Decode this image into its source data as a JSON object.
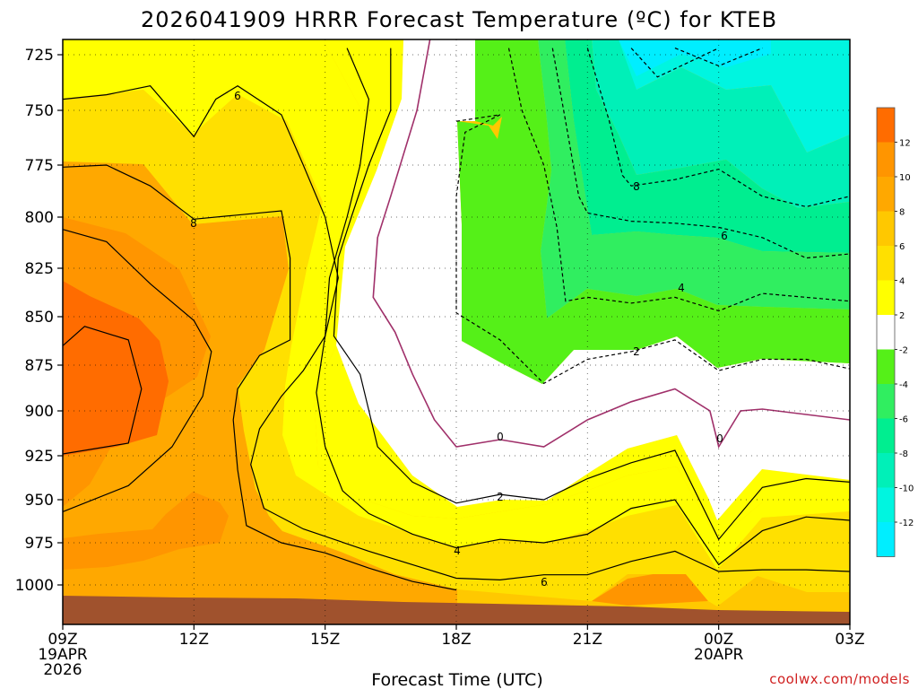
{
  "chart_data": {
    "type": "contour",
    "title": "2026041909 HRRR Forecast Temperature (ºC) for KTEB",
    "xlabel": "Forecast Time (UTC)",
    "ylabel": "",
    "credit": "coolwx.com/models",
    "y_axis": {
      "scale": "pressure (hPa), inverted",
      "ylim": [
        1015,
        718
      ],
      "ticks": [
        "725",
        "750",
        "775",
        "800",
        "825",
        "850",
        "875",
        "900",
        "925",
        "950",
        "975",
        "1000"
      ]
    },
    "x_axis": {
      "xlim_hours": [
        9,
        27
      ],
      "ticks": [
        {
          "label": "09Z",
          "line2": "19APR",
          "line3": "2026",
          "hour": 9
        },
        {
          "label": "12Z",
          "line2": "",
          "line3": "",
          "hour": 12
        },
        {
          "label": "15Z",
          "line2": "",
          "line3": "",
          "hour": 15
        },
        {
          "label": "18Z",
          "line2": "",
          "line3": "",
          "hour": 18
        },
        {
          "label": "21Z",
          "line2": "",
          "line3": "",
          "hour": 21
        },
        {
          "label": "00Z",
          "line2": "20APR",
          "line3": "",
          "hour": 24
        },
        {
          "label": "03Z",
          "line2": "",
          "line3": "",
          "hour": 27
        }
      ]
    },
    "colorbar": {
      "bands": [
        {
          "lo": -14,
          "hi": -12,
          "color": "#00eeff"
        },
        {
          "lo": -12,
          "hi": -10,
          "color": "#00f5e0"
        },
        {
          "lo": -10,
          "hi": -8,
          "color": "#00f0b8"
        },
        {
          "lo": -8,
          "hi": -6,
          "color": "#00ee90"
        },
        {
          "lo": -6,
          "hi": -4,
          "color": "#30ee60"
        },
        {
          "lo": -4,
          "hi": -2,
          "color": "#55f018"
        },
        {
          "lo": -2,
          "hi": 2,
          "color": "#ffffff"
        },
        {
          "lo": 2,
          "hi": 4,
          "color": "#ffff00"
        },
        {
          "lo": 4,
          "hi": 6,
          "color": "#ffe000"
        },
        {
          "lo": 6,
          "hi": 8,
          "color": "#ffc800"
        },
        {
          "lo": 8,
          "hi": 10,
          "color": "#ffa800"
        },
        {
          "lo": 10,
          "hi": 12,
          "color": "#ff9500"
        },
        {
          "lo": 12,
          "hi": 14,
          "color": "#ff6c00"
        }
      ],
      "tick_labels": [
        "12",
        "10",
        "8",
        "6",
        "4",
        "2",
        "-2",
        "-4",
        "-6",
        "-8",
        "-10",
        "-12"
      ]
    },
    "contour_labels": [
      "6",
      "8",
      "8",
      "6",
      "4",
      "2",
      "0",
      "0",
      "2",
      "4",
      "6"
    ],
    "series": [
      {
        "level": 12,
        "pressure_hPa_by_hour": [
          [
            9,
            865
          ],
          [
            9.5,
            855
          ],
          [
            10.5,
            862
          ],
          [
            10.8,
            888
          ],
          [
            10.5,
            918
          ],
          [
            9.5,
            922
          ],
          [
            9,
            924
          ]
        ]
      },
      {
        "level": 10,
        "pressure_hPa_by_hour": [
          [
            9,
            806
          ],
          [
            10,
            812
          ],
          [
            11,
            833
          ],
          [
            12,
            852
          ],
          [
            12.4,
            868
          ],
          [
            12.2,
            892
          ],
          [
            11.5,
            920
          ],
          [
            10.5,
            942
          ],
          [
            9,
            957
          ]
        ]
      },
      {
        "level": 8,
        "pressure_hPa_by_hour": [
          [
            9,
            776
          ],
          [
            10,
            775
          ],
          [
            11,
            785
          ],
          [
            12,
            801
          ],
          [
            13,
            799
          ],
          [
            14,
            797
          ],
          [
            14.2,
            820
          ],
          [
            14.2,
            862
          ],
          [
            13.5,
            870
          ],
          [
            13,
            888
          ],
          [
            12.9,
            905
          ],
          [
            13,
            933
          ],
          [
            13.2,
            965
          ],
          [
            14,
            975
          ],
          [
            15,
            981
          ],
          [
            16,
            990
          ],
          [
            17,
            998
          ],
          [
            18,
            1003
          ]
        ]
      },
      {
        "level": 6,
        "pressure_hPa_by_hour": [
          [
            9,
            745
          ],
          [
            10,
            743
          ],
          [
            11,
            739
          ],
          [
            12,
            762
          ],
          [
            12.5,
            745
          ],
          [
            13,
            739
          ],
          [
            14,
            752
          ],
          [
            14.5,
            775
          ],
          [
            15,
            800
          ],
          [
            15.3,
            830
          ],
          [
            15,
            860
          ],
          [
            14.5,
            878
          ],
          [
            14,
            892
          ],
          [
            13.5,
            910
          ],
          [
            13.3,
            930
          ],
          [
            13.6,
            955
          ],
          [
            14.5,
            967
          ],
          [
            16,
            980
          ],
          [
            18,
            996
          ],
          [
            19,
            997
          ],
          [
            20,
            994
          ],
          [
            21,
            994
          ],
          [
            22,
            986
          ],
          [
            23,
            980
          ],
          [
            24,
            992
          ],
          [
            25,
            991
          ],
          [
            26,
            991
          ],
          [
            27,
            992
          ]
        ]
      },
      {
        "level": 4,
        "pressure_hPa_by_hour": [
          [
            15.5,
            722
          ],
          [
            16,
            745
          ],
          [
            15.8,
            775
          ],
          [
            15.5,
            800
          ],
          [
            15.1,
            830
          ],
          [
            15,
            860
          ],
          [
            14.8,
            890
          ],
          [
            15,
            920
          ],
          [
            15.4,
            945
          ],
          [
            16,
            958
          ],
          [
            17,
            970
          ],
          [
            18,
            978
          ],
          [
            19,
            973
          ],
          [
            20,
            975
          ],
          [
            21,
            970
          ],
          [
            22,
            955
          ],
          [
            23,
            950
          ],
          [
            24,
            988
          ],
          [
            25,
            968
          ],
          [
            26,
            960
          ],
          [
            27,
            962
          ]
        ]
      },
      {
        "level": 2,
        "pressure_hPa_by_hour": [
          [
            16.5,
            722
          ],
          [
            16.5,
            750
          ],
          [
            16,
            775
          ],
          [
            15.6,
            800
          ],
          [
            15.3,
            820
          ],
          [
            15.2,
            860
          ],
          [
            15.8,
            880
          ],
          [
            16.2,
            920
          ],
          [
            17,
            940
          ],
          [
            18,
            952
          ],
          [
            19,
            947
          ],
          [
            20,
            950
          ],
          [
            21,
            938
          ],
          [
            22,
            929
          ],
          [
            23,
            922
          ],
          [
            24,
            973
          ],
          [
            25,
            943
          ],
          [
            26,
            938
          ],
          [
            27,
            940
          ]
        ]
      },
      {
        "level": 0,
        "pressure_hPa_by_hour": [
          [
            17.4,
            718
          ],
          [
            17.1,
            750
          ],
          [
            16.5,
            790
          ],
          [
            16.2,
            810
          ],
          [
            16.1,
            840
          ],
          [
            16.6,
            858
          ],
          [
            17,
            880
          ],
          [
            17.5,
            905
          ],
          [
            18,
            920
          ],
          [
            19,
            916
          ],
          [
            20,
            920
          ],
          [
            21,
            905
          ],
          [
            22,
            895
          ],
          [
            23,
            888
          ],
          [
            23.8,
            900
          ],
          [
            24,
            920
          ],
          [
            24.5,
            900
          ],
          [
            25,
            899
          ],
          [
            26,
            902
          ],
          [
            27,
            905
          ]
        ]
      },
      {
        "level": -2,
        "pressure_hPa_by_hour": [
          [
            18,
            755
          ],
          [
            19,
            752
          ],
          [
            18.2,
            760
          ],
          [
            18,
            790
          ],
          [
            18,
            830
          ],
          [
            18,
            848
          ],
          [
            19,
            862
          ],
          [
            20,
            885
          ],
          [
            21,
            872
          ],
          [
            22,
            868
          ],
          [
            23,
            862
          ],
          [
            24,
            878
          ],
          [
            25,
            872
          ],
          [
            26,
            872
          ],
          [
            27,
            877
          ]
        ]
      },
      {
        "level": -4,
        "pressure_hPa_by_hour": [
          [
            19.2,
            722
          ],
          [
            19.5,
            750
          ],
          [
            20,
            775
          ],
          [
            20.3,
            805
          ],
          [
            20.5,
            842
          ],
          [
            21,
            840
          ],
          [
            22,
            843
          ],
          [
            23,
            840
          ],
          [
            24,
            847
          ],
          [
            25,
            838
          ],
          [
            27,
            842
          ]
        ]
      },
      {
        "level": -6,
        "pressure_hPa_by_hour": [
          [
            20.2,
            722
          ],
          [
            20.5,
            755
          ],
          [
            20.8,
            790
          ],
          [
            21,
            798
          ],
          [
            22,
            802
          ],
          [
            23,
            803
          ],
          [
            24,
            805
          ],
          [
            25,
            810
          ],
          [
            26,
            820
          ],
          [
            27,
            818
          ]
        ]
      },
      {
        "level": -8,
        "pressure_hPa_by_hour": [
          [
            21,
            722
          ],
          [
            21.5,
            755
          ],
          [
            21.8,
            780
          ],
          [
            22,
            785
          ],
          [
            23,
            782
          ],
          [
            24,
            777
          ],
          [
            25,
            790
          ],
          [
            26,
            795
          ],
          [
            27,
            790
          ]
        ]
      },
      {
        "level": -10,
        "pressure_hPa_by_hour": [
          [
            22,
            722
          ],
          [
            22.6,
            735
          ],
          [
            24,
            722
          ]
        ]
      },
      {
        "level": -12,
        "pressure_hPa_by_hour": [
          [
            23,
            722
          ],
          [
            24,
            730
          ],
          [
            25,
            722
          ]
        ]
      }
    ]
  }
}
